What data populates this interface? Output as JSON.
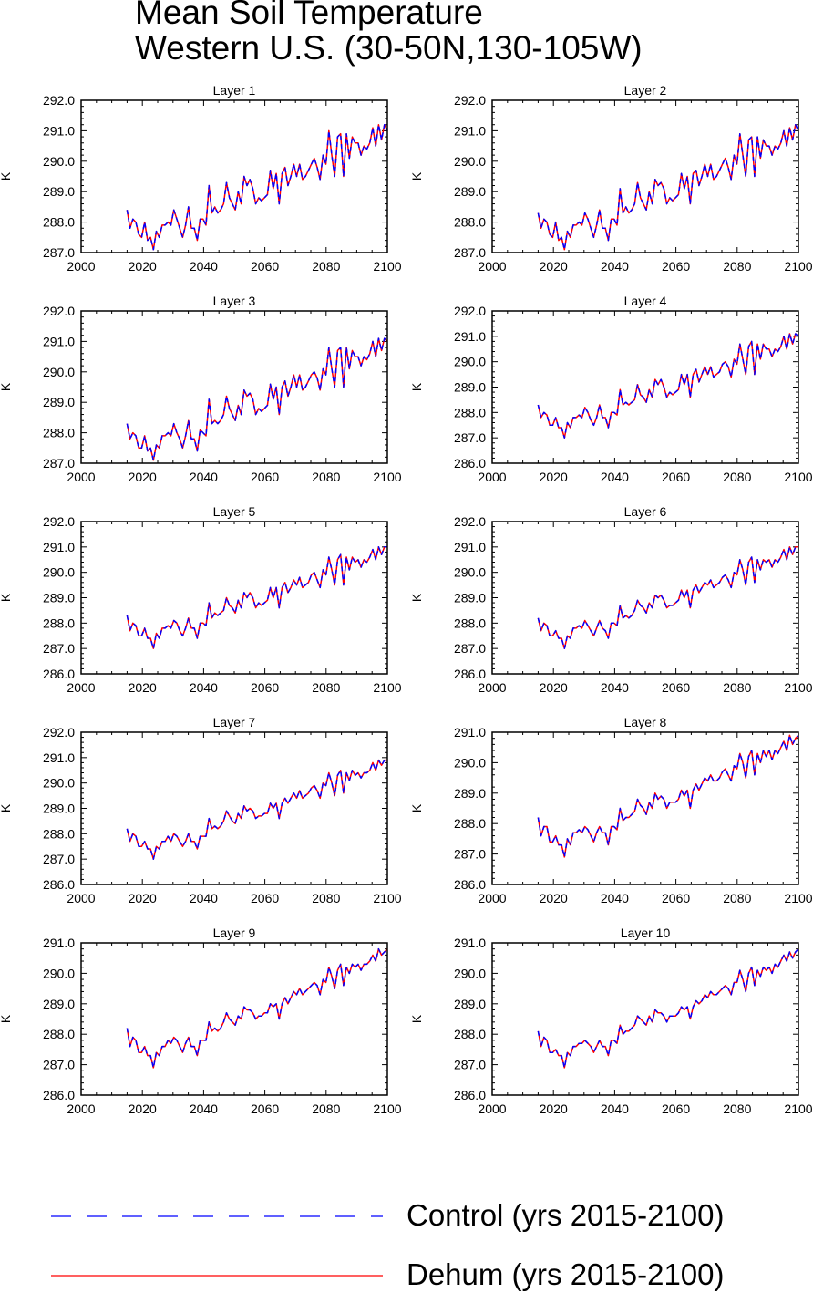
{
  "figure": {
    "title_line1": "Mean Soil Temperature",
    "title_line2": "Western U.S. (30-50N,130-105W)"
  },
  "legend": {
    "items": [
      {
        "label": "Control (yrs 2015-2100)",
        "color": "#0000ff",
        "style": "dashed"
      },
      {
        "label": "Dehum (yrs 2015-2100)",
        "color": "#ff0000",
        "style": "solid"
      }
    ]
  },
  "chart_data": [
    {
      "type": "line",
      "title": "Layer 1",
      "ylabel": "K",
      "xlim": [
        2000,
        2100
      ],
      "ylim": [
        287.0,
        292.0
      ],
      "xticks": [
        2000,
        2020,
        2040,
        2060,
        2080,
        2100
      ],
      "yticks": [
        "287.0",
        "288.0",
        "289.0",
        "290.0",
        "291.0",
        "292.0"
      ],
      "x_start": 2015,
      "x_end": 2100,
      "values": [
        288.4,
        287.8,
        288.1,
        288.0,
        287.6,
        287.5,
        288.0,
        287.4,
        287.5,
        287.1,
        287.7,
        287.5,
        287.9,
        287.9,
        288.0,
        287.9,
        288.4,
        288.1,
        287.8,
        287.5,
        287.9,
        288.5,
        287.8,
        287.8,
        287.4,
        288.1,
        288.1,
        287.9,
        289.2,
        288.3,
        288.5,
        288.3,
        288.4,
        288.6,
        289.3,
        288.8,
        288.6,
        288.4,
        289.0,
        288.6,
        289.5,
        289.2,
        289.4,
        289.1,
        288.6,
        288.8,
        288.7,
        288.8,
        288.9,
        289.7,
        289.1,
        289.6,
        288.6,
        289.6,
        289.8,
        289.2,
        289.5,
        289.9,
        289.5,
        289.9,
        289.4,
        289.5,
        289.7,
        289.9,
        290.1,
        289.8,
        289.4,
        290.2,
        289.9,
        291.0,
        290.2,
        289.5,
        290.8,
        290.9,
        289.5,
        290.9,
        290.1,
        290.8,
        290.6,
        290.6,
        290.2,
        290.5,
        290.4,
        290.6,
        291.1,
        290.5,
        291.2,
        290.7,
        291.2,
        291.0
      ]
    },
    {
      "type": "line",
      "title": "Layer 2",
      "ylabel": "K",
      "xlim": [
        2000,
        2100
      ],
      "ylim": [
        287.0,
        292.0
      ],
      "xticks": [
        2000,
        2020,
        2040,
        2060,
        2080,
        2100
      ],
      "yticks": [
        "287.0",
        "288.0",
        "289.0",
        "290.0",
        "291.0",
        "292.0"
      ],
      "x_start": 2015,
      "x_end": 2100,
      "values": [
        288.3,
        287.8,
        288.1,
        288.0,
        287.6,
        287.5,
        288.0,
        287.4,
        287.5,
        287.1,
        287.7,
        287.5,
        287.9,
        287.9,
        288.0,
        287.9,
        288.3,
        288.1,
        287.8,
        287.5,
        287.9,
        288.4,
        287.8,
        287.8,
        287.4,
        288.1,
        288.1,
        287.9,
        289.1,
        288.3,
        288.5,
        288.3,
        288.4,
        288.6,
        289.3,
        288.8,
        288.6,
        288.4,
        289.0,
        288.6,
        289.4,
        289.2,
        289.3,
        289.1,
        288.6,
        288.8,
        288.7,
        288.8,
        288.9,
        289.6,
        289.1,
        289.5,
        288.6,
        289.6,
        289.7,
        289.2,
        289.5,
        289.9,
        289.5,
        289.9,
        289.4,
        289.5,
        289.7,
        289.9,
        290.1,
        289.8,
        289.4,
        290.2,
        289.9,
        290.9,
        290.2,
        289.5,
        290.7,
        290.8,
        289.5,
        290.8,
        290.1,
        290.7,
        290.5,
        290.5,
        290.2,
        290.5,
        290.4,
        290.6,
        291.0,
        290.5,
        291.1,
        290.7,
        291.2,
        291.0
      ]
    },
    {
      "type": "line",
      "title": "Layer 3",
      "ylabel": "K",
      "xlim": [
        2000,
        2100
      ],
      "ylim": [
        287.0,
        292.0
      ],
      "xticks": [
        2000,
        2020,
        2040,
        2060,
        2080,
        2100
      ],
      "yticks": [
        "287.0",
        "288.0",
        "289.0",
        "290.0",
        "291.0",
        "292.0"
      ],
      "x_start": 2015,
      "x_end": 2100,
      "values": [
        288.3,
        287.8,
        288.0,
        287.9,
        287.5,
        287.5,
        287.9,
        287.4,
        287.5,
        287.1,
        287.6,
        287.5,
        287.9,
        287.9,
        288.0,
        287.9,
        288.3,
        288.0,
        287.8,
        287.5,
        287.9,
        288.4,
        287.8,
        287.8,
        287.4,
        288.1,
        288.0,
        287.9,
        289.1,
        288.3,
        288.4,
        288.3,
        288.4,
        288.6,
        289.2,
        288.8,
        288.6,
        288.4,
        288.9,
        288.6,
        289.4,
        289.2,
        289.3,
        289.1,
        288.6,
        288.8,
        288.7,
        288.8,
        288.9,
        289.6,
        289.1,
        289.5,
        288.6,
        289.5,
        289.7,
        289.2,
        289.5,
        289.9,
        289.5,
        289.9,
        289.4,
        289.5,
        289.7,
        289.9,
        290.0,
        289.8,
        289.4,
        290.1,
        289.9,
        290.8,
        290.1,
        289.5,
        290.7,
        290.8,
        289.5,
        290.8,
        290.1,
        290.7,
        290.5,
        290.5,
        290.2,
        290.5,
        290.4,
        290.6,
        291.0,
        290.5,
        291.1,
        290.7,
        291.1,
        291.0
      ]
    },
    {
      "type": "line",
      "title": "Layer 4",
      "ylabel": "K",
      "xlim": [
        2000,
        2100
      ],
      "ylim": [
        286.0,
        292.0
      ],
      "xticks": [
        2000,
        2020,
        2040,
        2060,
        2080,
        2100
      ],
      "yticks": [
        "286.0",
        "287.0",
        "288.0",
        "289.0",
        "290.0",
        "291.0",
        "292.0"
      ],
      "x_start": 2015,
      "x_end": 2100,
      "values": [
        288.3,
        287.8,
        288.0,
        287.9,
        287.5,
        287.5,
        287.8,
        287.4,
        287.4,
        287.0,
        287.6,
        287.4,
        287.8,
        287.8,
        287.9,
        287.8,
        288.2,
        288.0,
        287.7,
        287.5,
        287.8,
        288.3,
        287.8,
        287.8,
        287.4,
        288.0,
        288.0,
        287.9,
        288.9,
        288.3,
        288.4,
        288.3,
        288.4,
        288.5,
        289.1,
        288.7,
        288.6,
        288.4,
        288.9,
        288.6,
        289.3,
        289.1,
        289.3,
        289.0,
        288.6,
        288.8,
        288.7,
        288.8,
        288.9,
        289.5,
        289.1,
        289.5,
        288.6,
        289.5,
        289.7,
        289.2,
        289.5,
        289.8,
        289.5,
        289.8,
        289.4,
        289.5,
        289.6,
        289.9,
        290.0,
        289.8,
        289.4,
        290.1,
        289.9,
        290.7,
        290.1,
        289.5,
        290.6,
        290.8,
        289.5,
        290.7,
        290.1,
        290.7,
        290.5,
        290.5,
        290.2,
        290.5,
        290.4,
        290.6,
        291.0,
        290.5,
        291.1,
        290.7,
        291.1,
        291.0
      ]
    },
    {
      "type": "line",
      "title": "Layer 5",
      "ylabel": "K",
      "xlim": [
        2000,
        2100
      ],
      "ylim": [
        286.0,
        292.0
      ],
      "xticks": [
        2000,
        2020,
        2040,
        2060,
        2080,
        2100
      ],
      "yticks": [
        "286.0",
        "287.0",
        "288.0",
        "289.0",
        "290.0",
        "291.0",
        "292.0"
      ],
      "x_start": 2015,
      "x_end": 2100,
      "values": [
        288.3,
        287.7,
        288.0,
        287.9,
        287.5,
        287.5,
        287.8,
        287.4,
        287.4,
        287.0,
        287.6,
        287.4,
        287.8,
        287.8,
        287.9,
        287.8,
        288.1,
        288.0,
        287.7,
        287.5,
        287.8,
        288.2,
        287.8,
        287.8,
        287.4,
        288.0,
        288.0,
        287.9,
        288.8,
        288.2,
        288.4,
        288.3,
        288.4,
        288.5,
        289.0,
        288.7,
        288.6,
        288.4,
        288.9,
        288.6,
        289.2,
        289.0,
        289.2,
        289.0,
        288.6,
        288.8,
        288.7,
        288.8,
        288.9,
        289.4,
        289.0,
        289.4,
        288.6,
        289.4,
        289.6,
        289.2,
        289.4,
        289.7,
        289.5,
        289.8,
        289.4,
        289.5,
        289.6,
        289.9,
        290.0,
        289.7,
        289.4,
        290.1,
        289.9,
        290.6,
        290.1,
        289.5,
        290.5,
        290.7,
        289.5,
        290.6,
        290.1,
        290.6,
        290.4,
        290.5,
        290.2,
        290.5,
        290.4,
        290.6,
        290.9,
        290.5,
        291.0,
        290.7,
        291.0,
        291.0
      ]
    },
    {
      "type": "line",
      "title": "Layer 6",
      "ylabel": "K",
      "xlim": [
        2000,
        2100
      ],
      "ylim": [
        286.0,
        292.0
      ],
      "xticks": [
        2000,
        2020,
        2040,
        2060,
        2080,
        2100
      ],
      "yticks": [
        "286.0",
        "287.0",
        "288.0",
        "289.0",
        "290.0",
        "291.0",
        "292.0"
      ],
      "x_start": 2015,
      "x_end": 2100,
      "values": [
        288.2,
        287.7,
        288.0,
        287.9,
        287.5,
        287.5,
        287.7,
        287.4,
        287.4,
        287.0,
        287.5,
        287.4,
        287.8,
        287.8,
        287.9,
        287.8,
        288.1,
        287.9,
        287.7,
        287.5,
        287.8,
        288.1,
        287.8,
        287.7,
        287.4,
        288.0,
        288.0,
        287.9,
        288.7,
        288.2,
        288.3,
        288.2,
        288.3,
        288.5,
        288.9,
        288.7,
        288.6,
        288.4,
        288.8,
        288.6,
        289.1,
        289.0,
        289.1,
        288.9,
        288.6,
        288.7,
        288.7,
        288.8,
        288.9,
        289.3,
        289.0,
        289.3,
        288.6,
        289.3,
        289.5,
        289.2,
        289.4,
        289.6,
        289.5,
        289.7,
        289.4,
        289.5,
        289.6,
        289.8,
        289.9,
        289.7,
        289.4,
        290.0,
        289.9,
        290.5,
        290.1,
        289.5,
        290.4,
        290.6,
        289.6,
        290.5,
        290.1,
        290.5,
        290.4,
        290.5,
        290.2,
        290.5,
        290.4,
        290.6,
        290.9,
        290.5,
        291.0,
        290.7,
        291.0,
        291.0
      ]
    },
    {
      "type": "line",
      "title": "Layer 7",
      "ylabel": "K",
      "xlim": [
        2000,
        2100
      ],
      "ylim": [
        286.0,
        292.0
      ],
      "xticks": [
        2000,
        2020,
        2040,
        2060,
        2080,
        2100
      ],
      "yticks": [
        "286.0",
        "287.0",
        "288.0",
        "289.0",
        "290.0",
        "291.0",
        "292.0"
      ],
      "x_start": 2015,
      "x_end": 2100,
      "values": [
        288.2,
        287.7,
        288.0,
        287.9,
        287.5,
        287.5,
        287.7,
        287.4,
        287.4,
        287.0,
        287.5,
        287.4,
        287.7,
        287.7,
        287.9,
        287.7,
        288.0,
        287.9,
        287.7,
        287.5,
        287.7,
        288.0,
        287.7,
        287.7,
        287.4,
        287.9,
        287.9,
        287.9,
        288.6,
        288.2,
        288.3,
        288.2,
        288.3,
        288.5,
        288.9,
        288.7,
        288.5,
        288.4,
        288.8,
        288.6,
        289.1,
        288.9,
        289.0,
        288.9,
        288.6,
        288.7,
        288.7,
        288.8,
        288.8,
        289.2,
        289.0,
        289.2,
        288.6,
        289.2,
        289.4,
        289.2,
        289.4,
        289.6,
        289.4,
        289.7,
        289.4,
        289.5,
        289.6,
        289.8,
        289.9,
        289.7,
        289.4,
        290.0,
        289.9,
        290.4,
        290.0,
        289.5,
        290.3,
        290.5,
        289.6,
        290.4,
        290.1,
        290.5,
        290.3,
        290.4,
        290.2,
        290.4,
        290.4,
        290.5,
        290.8,
        290.5,
        290.9,
        290.7,
        290.9,
        290.9
      ]
    },
    {
      "type": "line",
      "title": "Layer 8",
      "ylabel": "K",
      "xlim": [
        2000,
        2100
      ],
      "ylim": [
        286.0,
        291.0
      ],
      "xticks": [
        2000,
        2020,
        2040,
        2060,
        2080,
        2100
      ],
      "yticks": [
        "286.0",
        "287.0",
        "288.0",
        "289.0",
        "290.0",
        "291.0"
      ],
      "x_start": 2015,
      "x_end": 2100,
      "values": [
        288.2,
        287.6,
        287.9,
        287.9,
        287.4,
        287.4,
        287.6,
        287.3,
        287.3,
        286.9,
        287.5,
        287.3,
        287.7,
        287.7,
        287.8,
        287.7,
        287.9,
        287.8,
        287.6,
        287.4,
        287.7,
        287.9,
        287.7,
        287.7,
        287.3,
        287.9,
        287.9,
        287.8,
        288.5,
        288.1,
        288.2,
        288.2,
        288.3,
        288.4,
        288.8,
        288.6,
        288.5,
        288.3,
        288.7,
        288.5,
        289.0,
        288.8,
        288.9,
        288.8,
        288.5,
        288.7,
        288.7,
        288.7,
        288.8,
        289.1,
        288.9,
        289.1,
        288.5,
        289.1,
        289.3,
        289.1,
        289.3,
        289.5,
        289.4,
        289.6,
        289.4,
        289.4,
        289.5,
        289.7,
        289.8,
        289.6,
        289.4,
        289.9,
        289.8,
        290.3,
        290.0,
        289.5,
        290.2,
        290.4,
        289.6,
        290.3,
        290.0,
        290.4,
        290.2,
        290.4,
        290.1,
        290.4,
        290.3,
        290.5,
        290.7,
        290.4,
        290.9,
        290.6,
        290.8,
        290.9
      ]
    },
    {
      "type": "line",
      "title": "Layer 9",
      "ylabel": "K",
      "xlim": [
        2000,
        2100
      ],
      "ylim": [
        286.0,
        291.0
      ],
      "xticks": [
        2000,
        2020,
        2040,
        2060,
        2080,
        2100
      ],
      "yticks": [
        "286.0",
        "287.0",
        "288.0",
        "289.0",
        "290.0",
        "291.0"
      ],
      "x_start": 2015,
      "x_end": 2100,
      "values": [
        288.2,
        287.6,
        287.9,
        287.8,
        287.4,
        287.4,
        287.6,
        287.3,
        287.3,
        286.9,
        287.4,
        287.3,
        287.6,
        287.6,
        287.8,
        287.7,
        287.9,
        287.8,
        287.6,
        287.4,
        287.7,
        287.9,
        287.6,
        287.6,
        287.3,
        287.8,
        287.8,
        287.8,
        288.4,
        288.1,
        288.2,
        288.1,
        288.2,
        288.4,
        288.7,
        288.5,
        288.4,
        288.3,
        288.6,
        288.5,
        288.9,
        288.8,
        288.8,
        288.7,
        288.5,
        288.6,
        288.6,
        288.7,
        288.7,
        289.0,
        288.9,
        289.0,
        288.5,
        289.0,
        289.2,
        289.0,
        289.2,
        289.4,
        289.3,
        289.5,
        289.3,
        289.4,
        289.5,
        289.6,
        289.7,
        289.6,
        289.3,
        289.8,
        289.7,
        290.2,
        289.9,
        289.5,
        290.1,
        290.3,
        289.6,
        290.2,
        290.0,
        290.3,
        290.2,
        290.3,
        290.1,
        290.3,
        290.3,
        290.4,
        290.6,
        290.4,
        290.8,
        290.6,
        290.7,
        290.8
      ]
    },
    {
      "type": "line",
      "title": "Layer 10",
      "ylabel": "K",
      "xlim": [
        2000,
        2100
      ],
      "ylim": [
        286.0,
        291.0
      ],
      "xticks": [
        2000,
        2020,
        2040,
        2060,
        2080,
        2100
      ],
      "yticks": [
        "286.0",
        "287.0",
        "288.0",
        "289.0",
        "290.0",
        "291.0"
      ],
      "x_start": 2015,
      "x_end": 2100,
      "values": [
        288.1,
        287.6,
        287.9,
        287.8,
        287.4,
        287.4,
        287.5,
        287.3,
        287.3,
        286.9,
        287.4,
        287.3,
        287.6,
        287.6,
        287.7,
        287.7,
        287.8,
        287.7,
        287.6,
        287.4,
        287.6,
        287.8,
        287.6,
        287.6,
        287.3,
        287.8,
        287.8,
        287.7,
        288.3,
        288.0,
        288.1,
        288.1,
        288.2,
        288.3,
        288.6,
        288.5,
        288.4,
        288.3,
        288.6,
        288.4,
        288.8,
        288.7,
        288.7,
        288.6,
        288.4,
        288.6,
        288.6,
        288.6,
        288.7,
        288.9,
        288.8,
        288.9,
        288.5,
        288.9,
        289.1,
        289.0,
        289.1,
        289.3,
        289.2,
        289.4,
        289.3,
        289.3,
        289.4,
        289.5,
        289.6,
        289.5,
        289.3,
        289.7,
        289.7,
        290.1,
        289.8,
        289.4,
        290.0,
        290.2,
        289.6,
        290.1,
        289.9,
        290.2,
        290.1,
        290.2,
        290.0,
        290.3,
        290.2,
        290.4,
        290.6,
        290.4,
        290.7,
        290.5,
        290.7,
        290.8
      ]
    }
  ]
}
